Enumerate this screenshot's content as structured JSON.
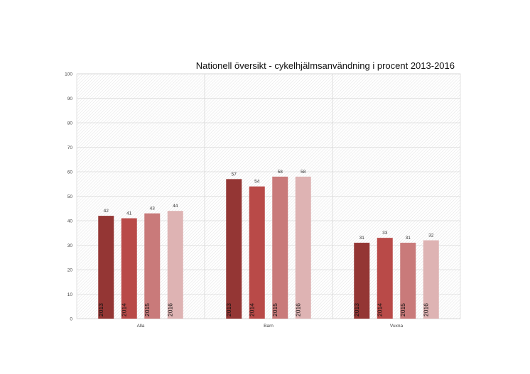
{
  "chart_data": {
    "type": "bar",
    "title": "Nationell översikt - cykelhjälmsanvändning i procent 2013-2016",
    "categories": [
      "Alla",
      "Barn",
      "Vuxna"
    ],
    "series": [
      {
        "name": "2013",
        "values": [
          42,
          57,
          31
        ],
        "color": "#943634"
      },
      {
        "name": "2014",
        "values": [
          41,
          54,
          33
        ],
        "color": "#b94a48"
      },
      {
        "name": "2015",
        "values": [
          43,
          58,
          31
        ],
        "color": "#c97a7a"
      },
      {
        "name": "2016",
        "values": [
          44,
          58,
          32
        ],
        "color": "#deb3b3"
      }
    ],
    "ylim": [
      0,
      100
    ],
    "yticks": [
      0,
      10,
      20,
      30,
      40,
      50,
      60,
      70,
      80,
      90,
      100
    ],
    "grid": true,
    "legend": "none"
  }
}
